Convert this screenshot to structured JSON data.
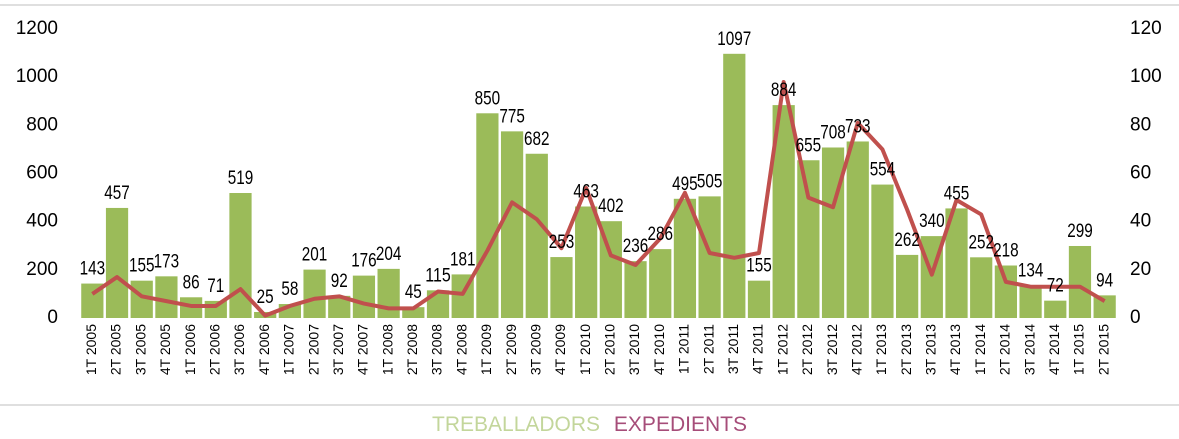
{
  "chart_data": {
    "type": "bar-line",
    "categories": [
      "1T 2005",
      "2T 2005",
      "3T 2005",
      "4T 2005",
      "1T 2006",
      "2T 2006",
      "3T 2006",
      "4T 2006",
      "1T 2007",
      "2T 2007",
      "3T 2007",
      "4T 2007",
      "1T 2008",
      "2T 2008",
      "3T 2008",
      "4T 2008",
      "1T 2009",
      "2T 2009",
      "3T 2009",
      "4T 2009",
      "1T 2010",
      "2T 2010",
      "3T 2010",
      "4T 2010",
      "1T 2011",
      "2T 2011",
      "3T 2011",
      "4T 2011",
      "1T 2012",
      "2T 2012",
      "3T 2012",
      "4T 2012",
      "1T 2013",
      "2T 2013",
      "3T 2013",
      "4T 2013",
      "1T 2014",
      "2T 2014",
      "3T 2014",
      "4T 2014",
      "1T 2015",
      "2T 2015"
    ],
    "series": [
      {
        "name": "TREBALLADORS",
        "type": "bar",
        "color": "#9bbb59",
        "data_labels": true,
        "values": [
          143,
          457,
          155,
          173,
          86,
          71,
          519,
          25,
          58,
          201,
          92,
          176,
          204,
          45,
          115,
          181,
          850,
          775,
          682,
          253,
          463,
          402,
          236,
          286,
          495,
          505,
          1097,
          155,
          884,
          655,
          708,
          733,
          554,
          262,
          340,
          455,
          252,
          218,
          134,
          72,
          299,
          94
        ]
      },
      {
        "name": "EXPEDIENTS",
        "type": "line",
        "axis": "y2",
        "color": "#c0504d",
        "values": [
          10,
          17,
          9,
          7,
          5,
          5,
          12,
          1,
          5,
          8,
          9,
          6,
          4,
          4,
          11,
          10,
          28,
          48,
          41,
          29,
          54,
          26,
          22,
          33,
          52,
          27,
          25,
          27,
          98,
          50,
          46,
          81,
          70,
          45,
          18,
          49,
          43,
          15,
          13,
          13,
          13,
          7
        ]
      }
    ],
    "ylim": [
      0,
      1200
    ],
    "yticks": [
      0,
      200,
      400,
      600,
      800,
      1000,
      1200
    ],
    "y2lim": [
      0,
      120
    ],
    "y2ticks": [
      0,
      20,
      40,
      60,
      80,
      100,
      120
    ]
  }
}
